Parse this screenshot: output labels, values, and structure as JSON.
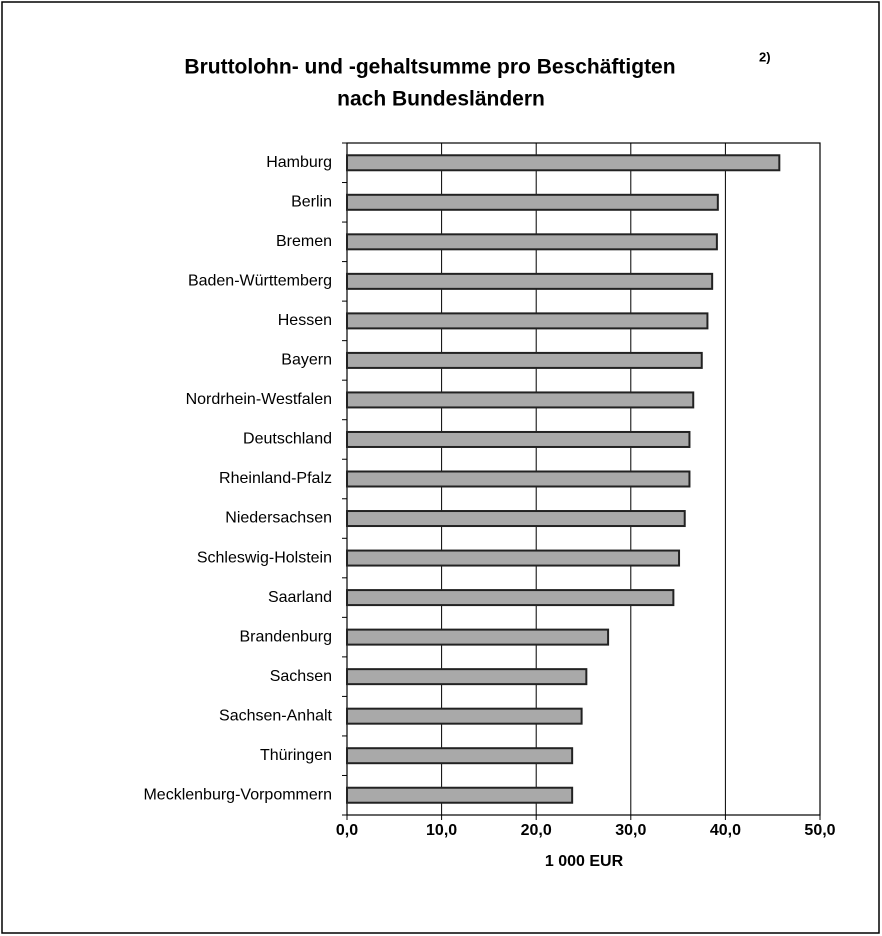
{
  "chart_data": {
    "type": "bar",
    "orientation": "horizontal",
    "title": [
      "Bruttolohn- und -gehaltsumme pro Beschäftigten",
      "nach Bundesländern"
    ],
    "title_note": "2)",
    "xlabel": "1 000 EUR",
    "categories": [
      "Hamburg",
      "Berlin",
      "Bremen",
      "Baden-Württemberg",
      "Hessen",
      "Bayern",
      "Nordrhein-Westfalen",
      "Deutschland",
      "Rheinland-Pfalz",
      "Niedersachsen",
      "Schleswig-Holstein",
      "Saarland",
      "Brandenburg",
      "Sachsen",
      "Sachsen-Anhalt",
      "Thüringen",
      "Mecklenburg-Vorpommern"
    ],
    "values": [
      45.7,
      39.2,
      39.1,
      38.6,
      38.1,
      37.5,
      36.6,
      36.2,
      36.2,
      35.7,
      35.1,
      34.5,
      27.6,
      25.3,
      24.8,
      23.8,
      23.8
    ],
    "color": "#a9a9a9",
    "xlim": [
      0,
      50
    ],
    "xticks": [
      {
        "value": 0,
        "label": "0,0"
      },
      {
        "value": 10,
        "label": "10,0"
      },
      {
        "value": 20,
        "label": "20,0"
      },
      {
        "value": 30,
        "label": "30,0"
      },
      {
        "value": 40,
        "label": "40,0"
      },
      {
        "value": 50,
        "label": "50,0"
      }
    ],
    "grid": true
  }
}
